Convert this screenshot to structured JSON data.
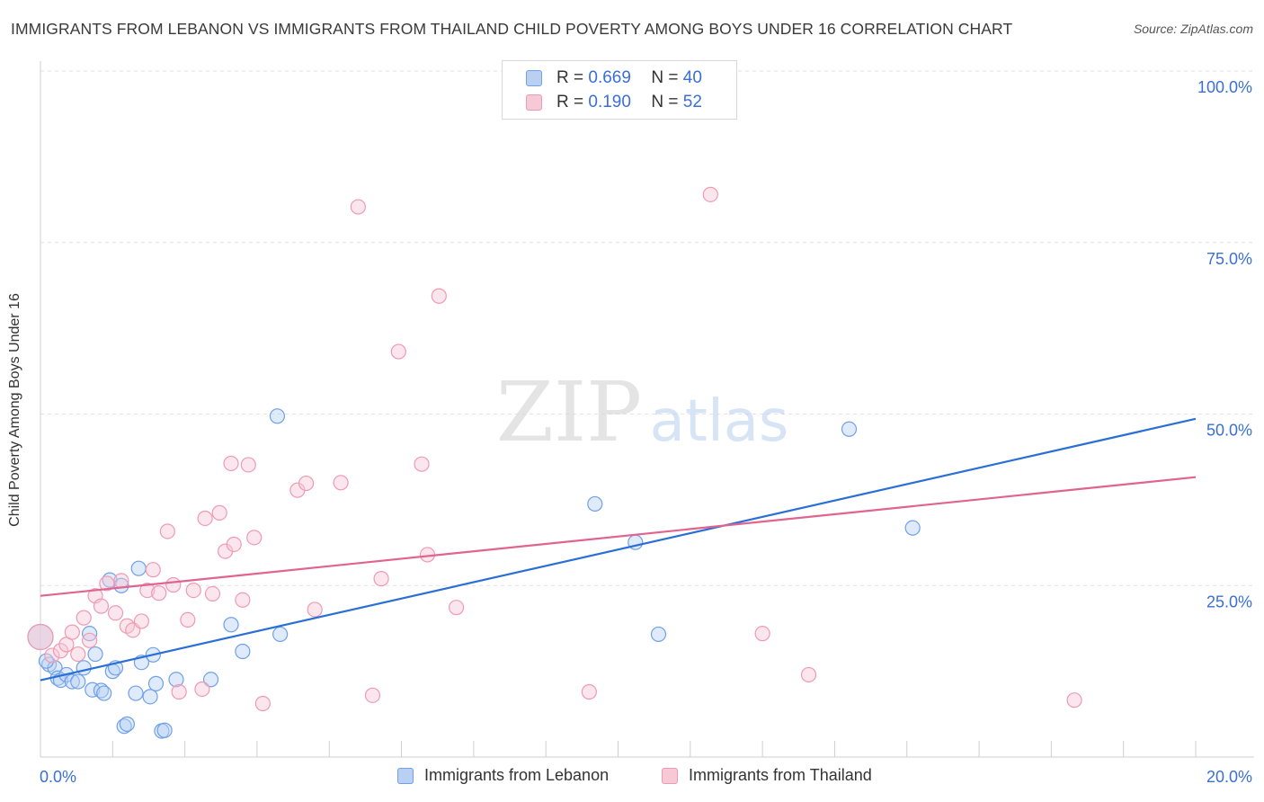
{
  "header": {
    "title": "IMMIGRANTS FROM LEBANON VS IMMIGRANTS FROM THAILAND CHILD POVERTY AMONG BOYS UNDER 16 CORRELATION CHART",
    "source": "Source: ZipAtlas.com"
  },
  "watermark": {
    "zip": "ZIP",
    "atlas": "atlas"
  },
  "legend": {
    "rows": [
      {
        "r_label": "R =",
        "r_value": "0.669",
        "n_label": "N =",
        "n_value": "40"
      },
      {
        "r_label": "R =",
        "r_value": "0.190",
        "n_label": "N =",
        "n_value": "52"
      }
    ]
  },
  "chart_data": {
    "type": "scatter",
    "title": "IMMIGRANTS FROM LEBANON VS IMMIGRANTS FROM THAILAND CHILD POVERTY AMONG BOYS UNDER 16 CORRELATION CHART",
    "xlabel": "",
    "ylabel": "Child Poverty Among Boys Under 16",
    "xlim": [
      0,
      20
    ],
    "ylim": [
      0,
      100
    ],
    "x_tick_labels": [
      "0.0%",
      "20.0%"
    ],
    "y_tick_labels": [
      "25.0%",
      "50.0%",
      "75.0%",
      "100.0%"
    ],
    "y_ticks": [
      25,
      50,
      75,
      100
    ],
    "grid": true,
    "series": [
      {
        "name": "Immigrants from Lebanon",
        "color": "#6fa0e8",
        "fill": "#b9d0f3",
        "trend_color": "#2a6fd6",
        "trend": {
          "x0": 0,
          "y0": 11.2,
          "x1": 20,
          "y1": 49.3
        },
        "points": [
          [
            0.0,
            17.5
          ],
          [
            0.15,
            13.5
          ],
          [
            0.25,
            13.0
          ],
          [
            0.3,
            11.5
          ],
          [
            0.35,
            11.2
          ],
          [
            0.45,
            12.0
          ],
          [
            0.55,
            11.0
          ],
          [
            0.65,
            11.0
          ],
          [
            0.75,
            13.0
          ],
          [
            0.85,
            18.0
          ],
          [
            0.9,
            9.8
          ],
          [
            0.95,
            15.0
          ],
          [
            1.05,
            9.7
          ],
          [
            1.1,
            9.3
          ],
          [
            1.2,
            25.8
          ],
          [
            1.25,
            12.5
          ],
          [
            1.3,
            13.0
          ],
          [
            1.4,
            25.0
          ],
          [
            1.45,
            4.5
          ],
          [
            1.5,
            4.8
          ],
          [
            1.65,
            9.3
          ],
          [
            1.7,
            27.5
          ],
          [
            1.75,
            13.8
          ],
          [
            1.9,
            8.8
          ],
          [
            1.95,
            14.9
          ],
          [
            2.0,
            10.7
          ],
          [
            2.1,
            3.8
          ],
          [
            2.15,
            3.9
          ],
          [
            2.35,
            11.3
          ],
          [
            2.95,
            11.3
          ],
          [
            3.3,
            19.3
          ],
          [
            3.5,
            15.4
          ],
          [
            4.1,
            49.7
          ],
          [
            4.15,
            17.9
          ],
          [
            9.6,
            36.9
          ],
          [
            10.3,
            31.3
          ],
          [
            10.7,
            17.9
          ],
          [
            14.0,
            47.8
          ],
          [
            15.1,
            33.4
          ],
          [
            0.1,
            14.0
          ]
        ]
      },
      {
        "name": "Immigrants from Thailand",
        "color": "#ef9ab3",
        "fill": "#f7c8d6",
        "trend_color": "#e0648f",
        "trend": {
          "x0": 0,
          "y0": 23.5,
          "x1": 20,
          "y1": 40.8
        },
        "points": [
          [
            0.0,
            17.5
          ],
          [
            0.2,
            14.8
          ],
          [
            0.35,
            15.5
          ],
          [
            0.45,
            16.4
          ],
          [
            0.55,
            18.2
          ],
          [
            0.65,
            15.0
          ],
          [
            0.75,
            20.3
          ],
          [
            0.85,
            17.0
          ],
          [
            0.95,
            23.5
          ],
          [
            1.05,
            22.0
          ],
          [
            1.15,
            25.3
          ],
          [
            1.3,
            21.0
          ],
          [
            1.4,
            25.7
          ],
          [
            1.5,
            19.1
          ],
          [
            1.6,
            18.5
          ],
          [
            1.75,
            19.8
          ],
          [
            1.85,
            24.3
          ],
          [
            1.95,
            27.3
          ],
          [
            2.05,
            23.9
          ],
          [
            2.2,
            32.9
          ],
          [
            2.3,
            25.1
          ],
          [
            2.4,
            9.5
          ],
          [
            2.55,
            20.0
          ],
          [
            2.65,
            24.3
          ],
          [
            2.8,
            9.9
          ],
          [
            2.85,
            34.8
          ],
          [
            2.98,
            23.8
          ],
          [
            3.1,
            35.6
          ],
          [
            3.2,
            30.0
          ],
          [
            3.3,
            42.8
          ],
          [
            3.35,
            31.0
          ],
          [
            3.5,
            22.9
          ],
          [
            3.6,
            42.6
          ],
          [
            3.7,
            32.0
          ],
          [
            3.85,
            7.8
          ],
          [
            4.45,
            38.9
          ],
          [
            4.6,
            39.9
          ],
          [
            4.75,
            21.5
          ],
          [
            5.2,
            40.0
          ],
          [
            5.5,
            80.2
          ],
          [
            5.75,
            9.0
          ],
          [
            5.9,
            26.0
          ],
          [
            6.2,
            59.1
          ],
          [
            6.6,
            42.7
          ],
          [
            6.7,
            29.5
          ],
          [
            6.9,
            67.2
          ],
          [
            7.2,
            21.8
          ],
          [
            9.5,
            9.5
          ],
          [
            11.6,
            82.0
          ],
          [
            12.5,
            18.0
          ],
          [
            13.3,
            12.0
          ],
          [
            17.9,
            8.3
          ]
        ]
      }
    ]
  }
}
